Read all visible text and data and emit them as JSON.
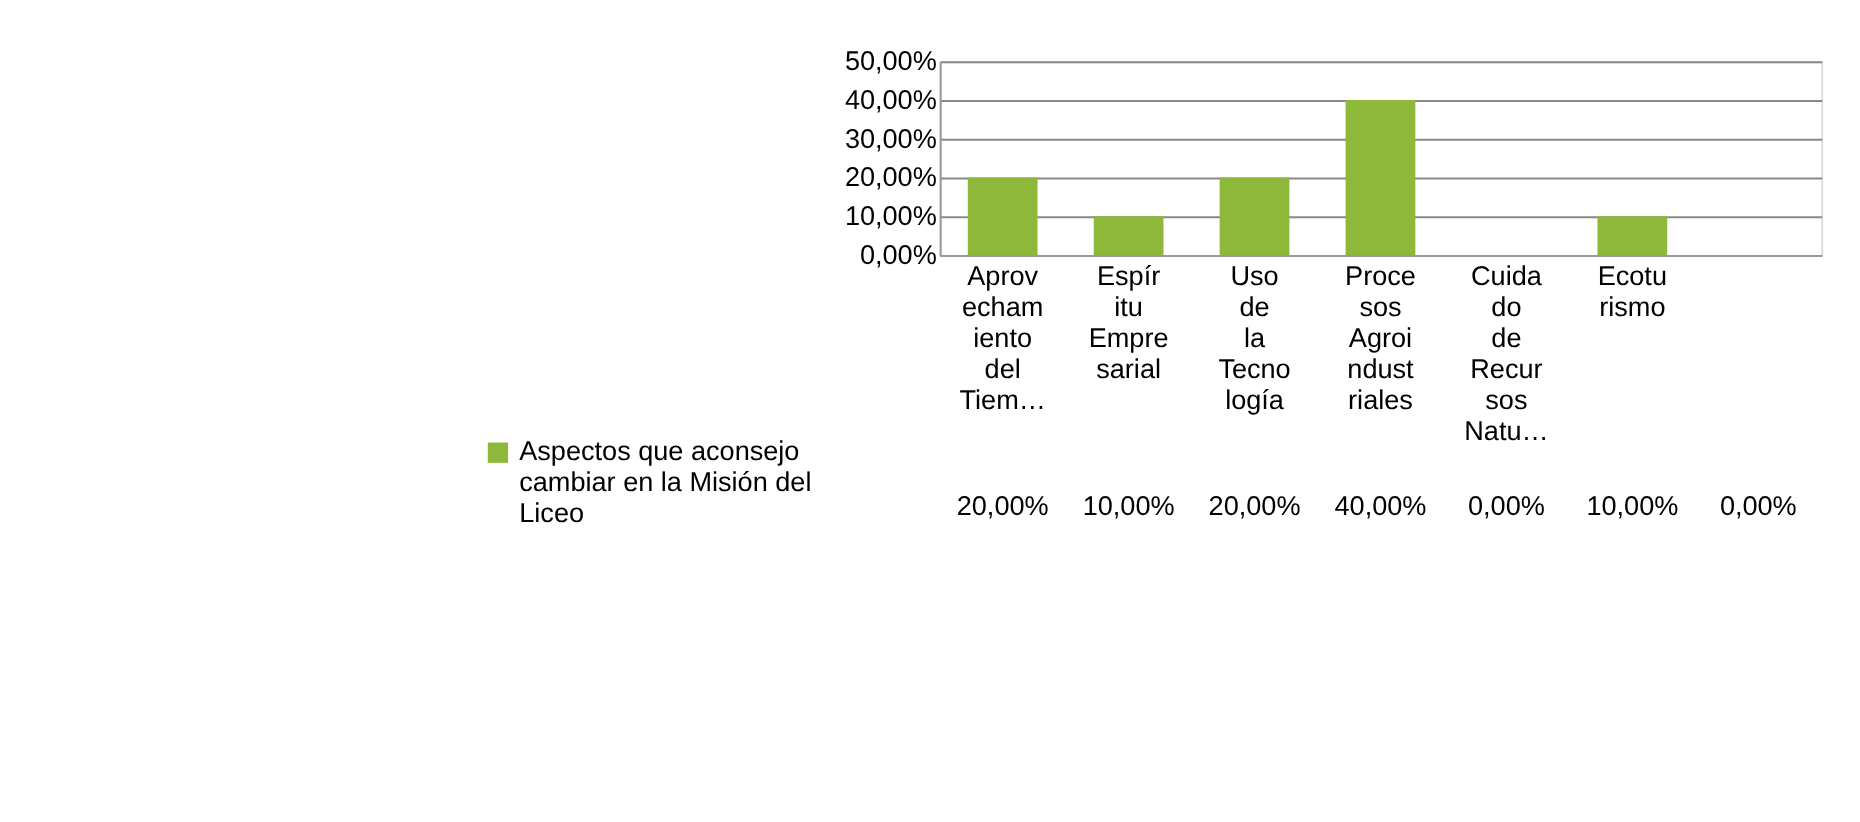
{
  "chart_data": {
    "type": "bar",
    "categories": [
      "Aprovechamiento del Tiem…",
      "Espíritu Empresarial",
      "Uso de la Tecnología",
      "Procesos Agroindustriales",
      "Cuidado de Recursos Natu…",
      "Ecoturismo",
      null
    ],
    "series": [
      {
        "name": "Aspectos que aconsejo cambiar en la Misión del Liceo",
        "color": "#8db83a",
        "values": [
          20,
          10,
          20,
          40,
          0,
          10,
          0
        ],
        "value_labels": [
          "20,00%",
          "10,00%",
          "20,00%",
          "40,00%",
          "0,00%",
          "10,00%",
          "0,00%"
        ]
      }
    ],
    "ylim": [
      0,
      50
    ],
    "yticks": [
      {
        "value": 0,
        "label": "0,00%"
      },
      {
        "value": 10,
        "label": "10,00%"
      },
      {
        "value": 20,
        "label": "20,00%"
      },
      {
        "value": 30,
        "label": "30,00%"
      },
      {
        "value": 40,
        "label": "40,00%"
      },
      {
        "value": 50,
        "label": "50,00%"
      }
    ],
    "grid": "y",
    "legend": "bottom left"
  }
}
